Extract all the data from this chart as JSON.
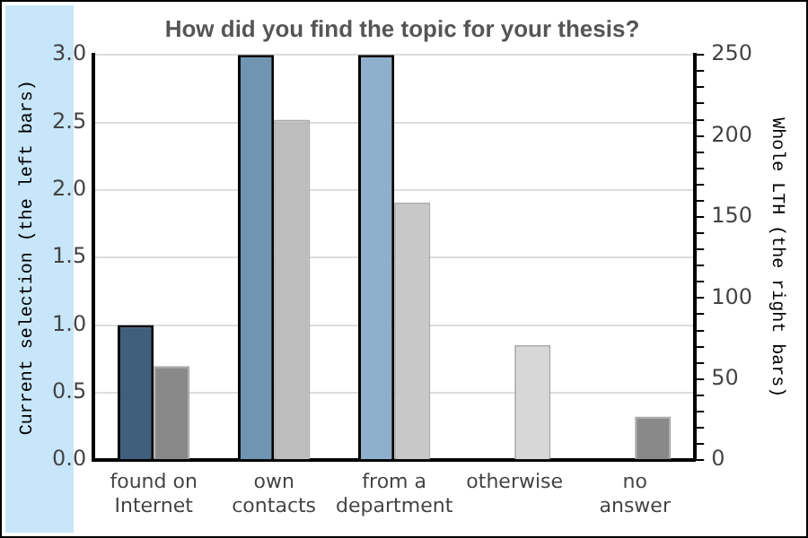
{
  "chart_data": {
    "type": "bar",
    "title": "How did you find the topic for your thesis?",
    "ylabel": "Current selection (the left bars)",
    "y2label": "Whole LTH (the right bars)",
    "categories": [
      "found on Internet",
      "own contacts",
      "from a department",
      "otherwise",
      "no answer"
    ],
    "series": [
      {
        "colors": [
          "#3f5f7c",
          "#7095b2",
          "#8fb0cc",
          "#8fb0cc",
          "#8fb0cc"
        ],
        "values": [
          1,
          3,
          3,
          0,
          0
        ]
      },
      {
        "axis": "y2",
        "colors": [
          "#898989",
          "#bdbdbd",
          "#c8c8c8",
          "#d7d7d7",
          "#898989"
        ],
        "values": [
          58,
          210,
          159,
          71,
          27
        ]
      }
    ],
    "ylim": [
      0,
      3
    ],
    "yticks": [
      {
        "value": 0,
        "label": "0.0"
      },
      {
        "value": 0.5,
        "label": "0.5"
      },
      {
        "value": 1,
        "label": "1.0"
      },
      {
        "value": 1.5,
        "label": "1.5"
      },
      {
        "value": 2,
        "label": "2.0"
      },
      {
        "value": 2.5,
        "label": "2.5"
      },
      {
        "value": 3,
        "label": "3.0"
      }
    ],
    "y2lim": [
      0,
      250
    ],
    "y2ticks": [
      0,
      {
        "value": 10,
        "label": null
      },
      {
        "value": 20,
        "label": null
      },
      {
        "value": 30,
        "label": null
      },
      {
        "value": 40,
        "label": null
      },
      50,
      {
        "value": 60,
        "label": null
      },
      {
        "value": 70,
        "label": null
      },
      {
        "value": 80,
        "label": null
      },
      {
        "value": 90,
        "label": null
      },
      100,
      {
        "value": 110,
        "label": null
      },
      {
        "value": 120,
        "label": null
      },
      {
        "value": 130,
        "label": null
      },
      {
        "value": 140,
        "label": null
      },
      150,
      {
        "value": 160,
        "label": null
      },
      {
        "value": 170,
        "label": null
      },
      {
        "value": 180,
        "label": null
      },
      {
        "value": 190,
        "label": null
      },
      200,
      {
        "value": 210,
        "label": null
      },
      {
        "value": 220,
        "label": null
      },
      {
        "value": 230,
        "label": null
      },
      {
        "value": 240,
        "label": null
      },
      250
    ],
    "grid": "y",
    "legend": false
  }
}
